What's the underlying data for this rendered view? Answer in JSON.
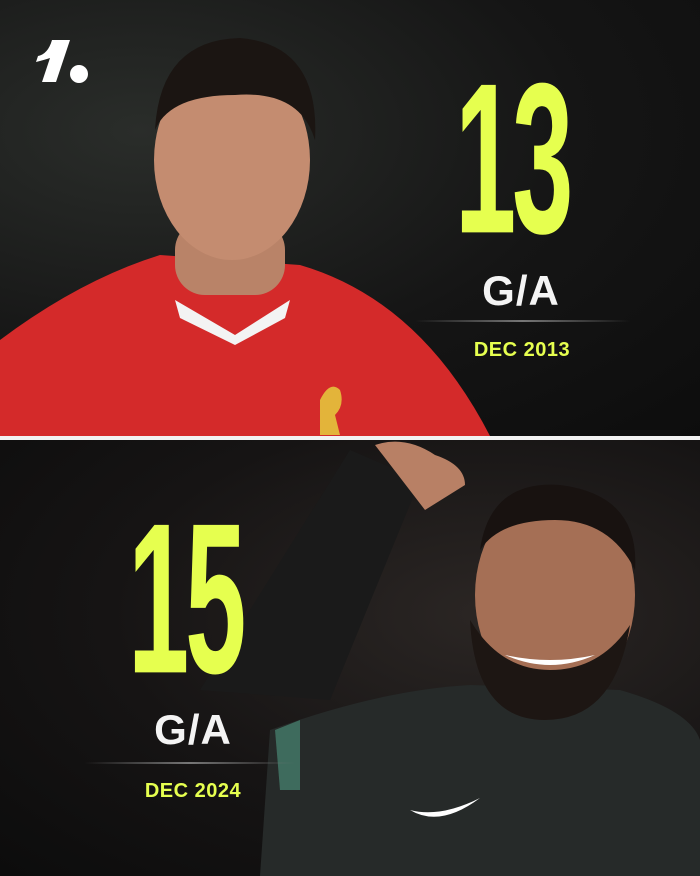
{
  "theme": {
    "accent": "#e6ff4f",
    "background": "#111111",
    "text": "#f4f4f4"
  },
  "brand": {
    "logo_icon": "onefootball-logo"
  },
  "panels": [
    {
      "player_shirt": "red",
      "value": "13",
      "metric": "G/A",
      "date": "DEC 2013"
    },
    {
      "player_shirt": "dark",
      "value": "15",
      "metric": "G/A",
      "date": "DEC 2024"
    }
  ]
}
